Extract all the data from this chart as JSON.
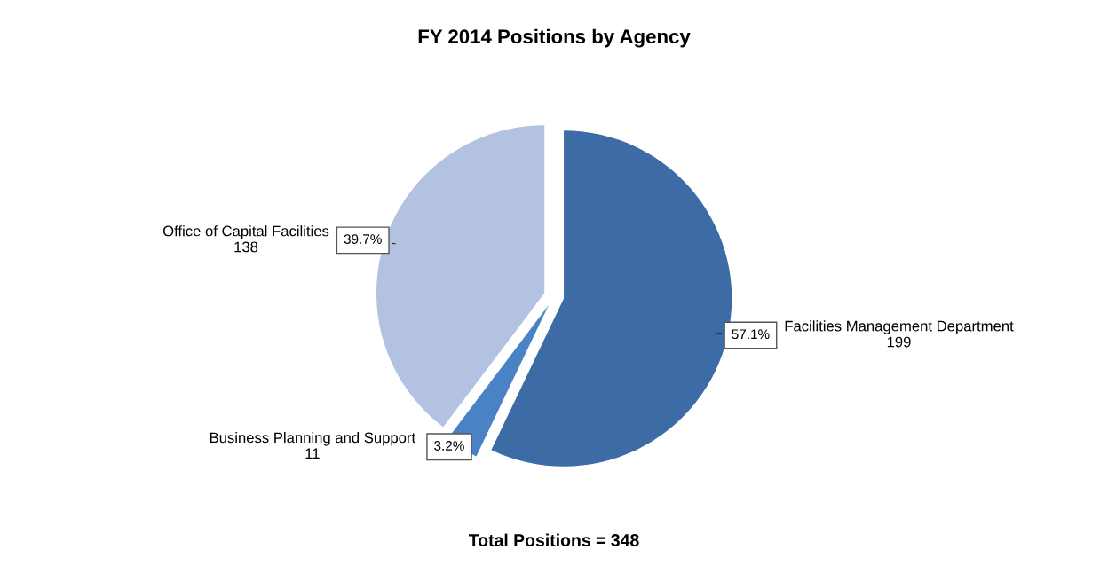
{
  "chart_data": {
    "type": "pie",
    "title": "FY 2014 Positions by Agency",
    "categories": [
      "Facilities Management Department\n199",
      "Business Planning and Support\n11",
      "Office of Capital Facilities\n138"
    ],
    "values": [
      57.1,
      3.2,
      39.7
    ],
    "colors": [
      "#3d6ba6",
      "#4a82c6",
      "#b3c2e0"
    ],
    "value_labels": [
      "57.1%",
      "3.2%",
      "39.7%"
    ],
    "annotations": [
      "Total Positions = 348"
    ]
  }
}
